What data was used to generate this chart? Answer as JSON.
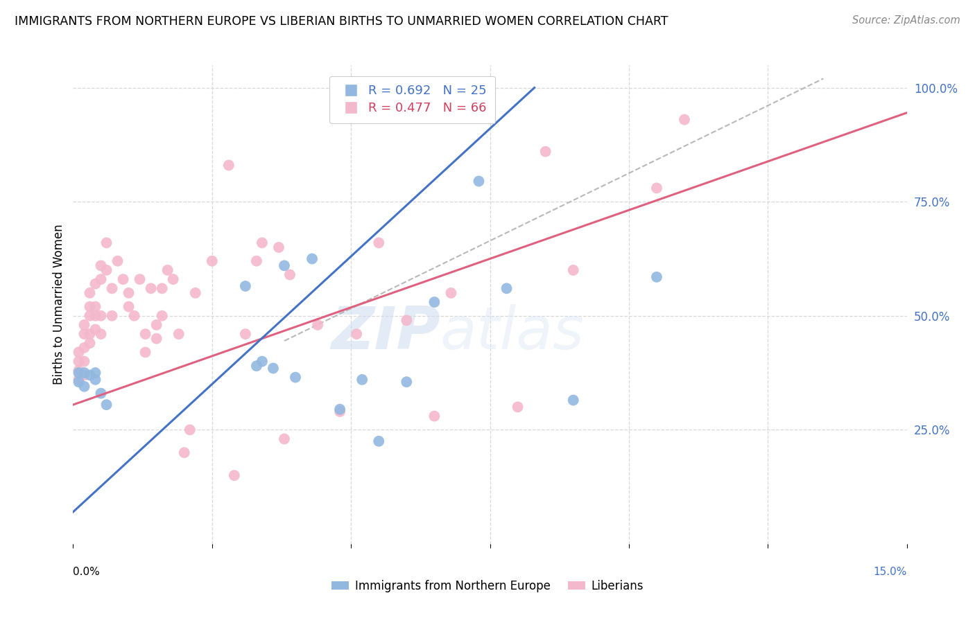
{
  "title": "IMMIGRANTS FROM NORTHERN EUROPE VS LIBERIAN BIRTHS TO UNMARRIED WOMEN CORRELATION CHART",
  "source": "Source: ZipAtlas.com",
  "ylabel": "Births to Unmarried Women",
  "watermark": "ZIPatlas",
  "blue_color": "#92b8e0",
  "pink_color": "#f4b8cc",
  "blue_line_color": "#4472c4",
  "pink_line_color": "#e06080",
  "trend_dash_color": "#b8b8b8",
  "background_color": "#ffffff",
  "grid_color": "#d8d8d8",
  "xmin": 0.0,
  "xmax": 0.15,
  "ymin": 0.0,
  "ymax": 1.05,
  "blue_scatter_x": [
    0.001,
    0.001,
    0.002,
    0.002,
    0.003,
    0.004,
    0.004,
    0.005,
    0.006,
    0.031,
    0.033,
    0.034,
    0.036,
    0.038,
    0.04,
    0.043,
    0.048,
    0.052,
    0.055,
    0.06,
    0.065,
    0.073,
    0.078,
    0.09,
    0.105
  ],
  "blue_scatter_y": [
    0.375,
    0.355,
    0.345,
    0.375,
    0.37,
    0.375,
    0.36,
    0.33,
    0.305,
    0.565,
    0.39,
    0.4,
    0.385,
    0.61,
    0.365,
    0.625,
    0.295,
    0.36,
    0.225,
    0.355,
    0.53,
    0.795,
    0.56,
    0.315,
    0.585
  ],
  "pink_scatter_x": [
    0.001,
    0.001,
    0.001,
    0.001,
    0.002,
    0.002,
    0.002,
    0.002,
    0.002,
    0.003,
    0.003,
    0.003,
    0.003,
    0.003,
    0.004,
    0.004,
    0.004,
    0.004,
    0.005,
    0.005,
    0.005,
    0.005,
    0.006,
    0.006,
    0.007,
    0.007,
    0.008,
    0.009,
    0.01,
    0.01,
    0.011,
    0.012,
    0.013,
    0.013,
    0.014,
    0.015,
    0.015,
    0.016,
    0.016,
    0.017,
    0.018,
    0.019,
    0.02,
    0.021,
    0.022,
    0.025,
    0.028,
    0.029,
    0.031,
    0.033,
    0.034,
    0.037,
    0.038,
    0.039,
    0.044,
    0.048,
    0.051,
    0.055,
    0.06,
    0.065,
    0.068,
    0.08,
    0.085,
    0.09,
    0.105,
    0.11
  ],
  "pink_scatter_y": [
    0.42,
    0.4,
    0.38,
    0.36,
    0.48,
    0.46,
    0.43,
    0.4,
    0.37,
    0.55,
    0.52,
    0.5,
    0.46,
    0.44,
    0.57,
    0.52,
    0.5,
    0.47,
    0.61,
    0.58,
    0.5,
    0.46,
    0.66,
    0.6,
    0.56,
    0.5,
    0.62,
    0.58,
    0.55,
    0.52,
    0.5,
    0.58,
    0.46,
    0.42,
    0.56,
    0.48,
    0.45,
    0.56,
    0.5,
    0.6,
    0.58,
    0.46,
    0.2,
    0.25,
    0.55,
    0.62,
    0.83,
    0.15,
    0.46,
    0.62,
    0.66,
    0.65,
    0.23,
    0.59,
    0.48,
    0.29,
    0.46,
    0.66,
    0.49,
    0.28,
    0.55,
    0.3,
    0.86,
    0.6,
    0.78,
    0.93
  ],
  "blue_line_x": [
    0.0,
    0.083
  ],
  "blue_line_y": [
    0.07,
    1.0
  ],
  "pink_line_x": [
    0.0,
    0.15
  ],
  "pink_line_y": [
    0.305,
    0.945
  ],
  "dash_line_x": [
    0.038,
    0.135
  ],
  "dash_line_y": [
    0.445,
    1.02
  ]
}
